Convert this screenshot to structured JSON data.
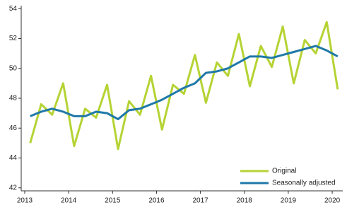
{
  "chart_data": {
    "type": "line",
    "x": [
      2013.125,
      2013.375,
      2013.625,
      2013.875,
      2014.125,
      2014.375,
      2014.625,
      2014.875,
      2015.125,
      2015.375,
      2015.625,
      2015.875,
      2016.125,
      2016.375,
      2016.625,
      2016.875,
      2017.125,
      2017.375,
      2017.625,
      2017.875,
      2018.125,
      2018.375,
      2018.625,
      2018.875,
      2019.125,
      2019.375,
      2019.625,
      2019.875,
      2020.125
    ],
    "series": [
      {
        "name": "Original",
        "color": "#b5d334",
        "values": [
          45.0,
          47.6,
          46.9,
          49.0,
          44.8,
          47.3,
          46.7,
          48.9,
          44.6,
          47.8,
          46.9,
          49.5,
          45.9,
          48.9,
          48.3,
          50.9,
          47.7,
          50.4,
          49.5,
          52.3,
          48.8,
          51.5,
          50.1,
          52.8,
          49.0,
          51.9,
          51.0,
          53.1,
          48.6
        ]
      },
      {
        "name": "Seasonally adjusted",
        "color": "#1f79a8",
        "values": [
          46.8,
          47.1,
          47.3,
          47.1,
          46.8,
          46.8,
          47.1,
          47.0,
          46.6,
          47.2,
          47.3,
          47.6,
          47.9,
          48.3,
          48.7,
          49.0,
          49.7,
          49.8,
          50.0,
          50.4,
          50.8,
          50.8,
          50.7,
          50.9,
          51.1,
          51.3,
          51.5,
          51.2,
          50.8
        ]
      }
    ],
    "xlim": [
      2012.92,
      2020.24
    ],
    "xticks": [
      2013,
      2014,
      2015,
      2016,
      2017,
      2018,
      2019,
      2020
    ],
    "ylim": [
      41.8,
      54.2
    ],
    "yticks": [
      42,
      44,
      46,
      48,
      50,
      52,
      54
    ],
    "grid": false,
    "legend": "lower-right"
  }
}
